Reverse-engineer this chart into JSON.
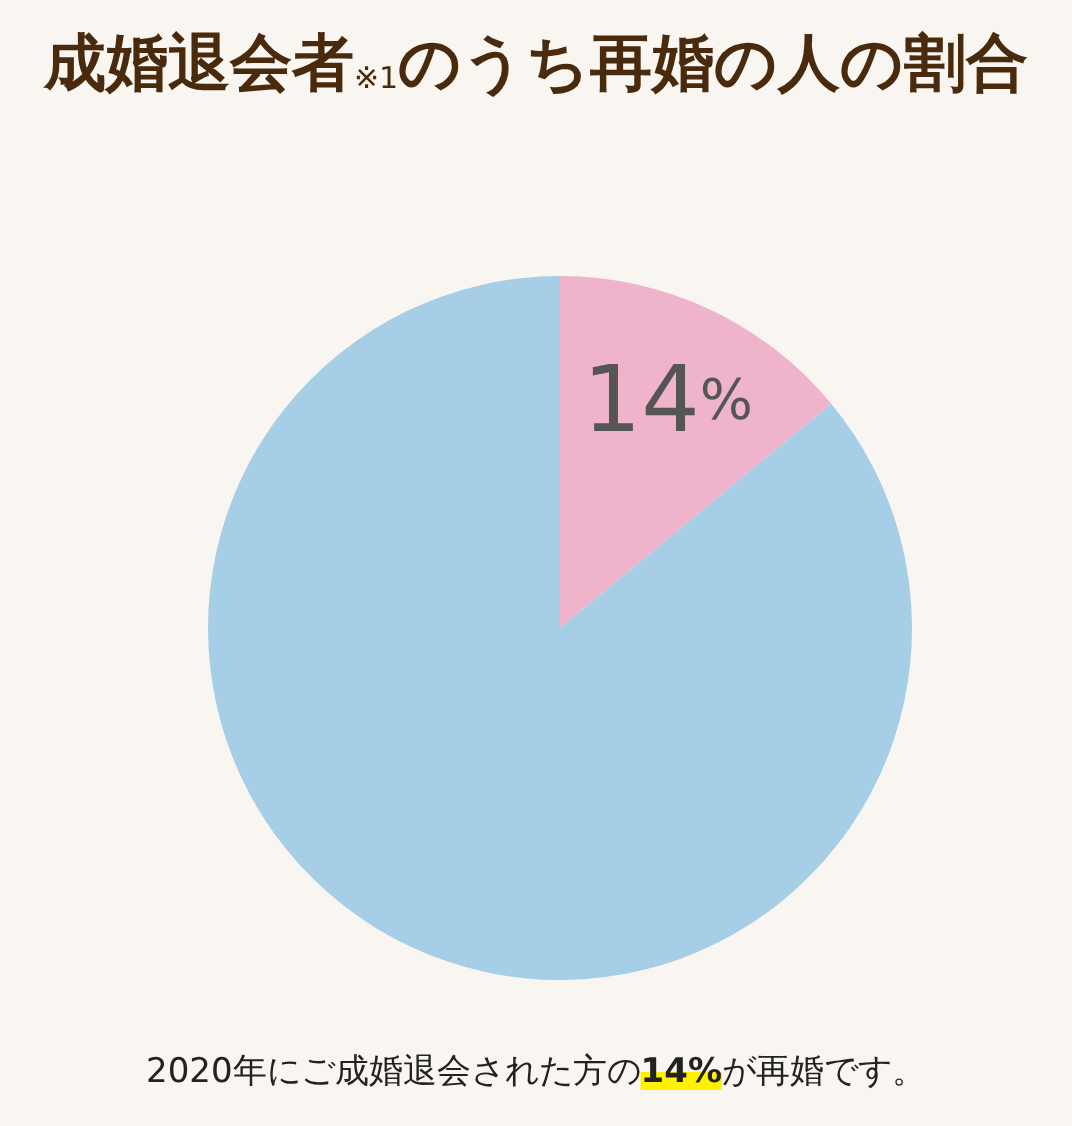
{
  "chart_data": {
    "type": "pie",
    "title": "成婚退会者$_{※1}$のうち再婚の人の割合",
    "categories": [
      null,
      null
    ],
    "values": [
      14,
      86
    ],
    "colors": [
      "#efb3cb",
      "#a6cee6"
    ],
    "value_labels": [
      "14%",
      null
    ],
    "annotations": [
      "2020年にご成婚退会された方の14%が再婚です。"
    ]
  }
}
